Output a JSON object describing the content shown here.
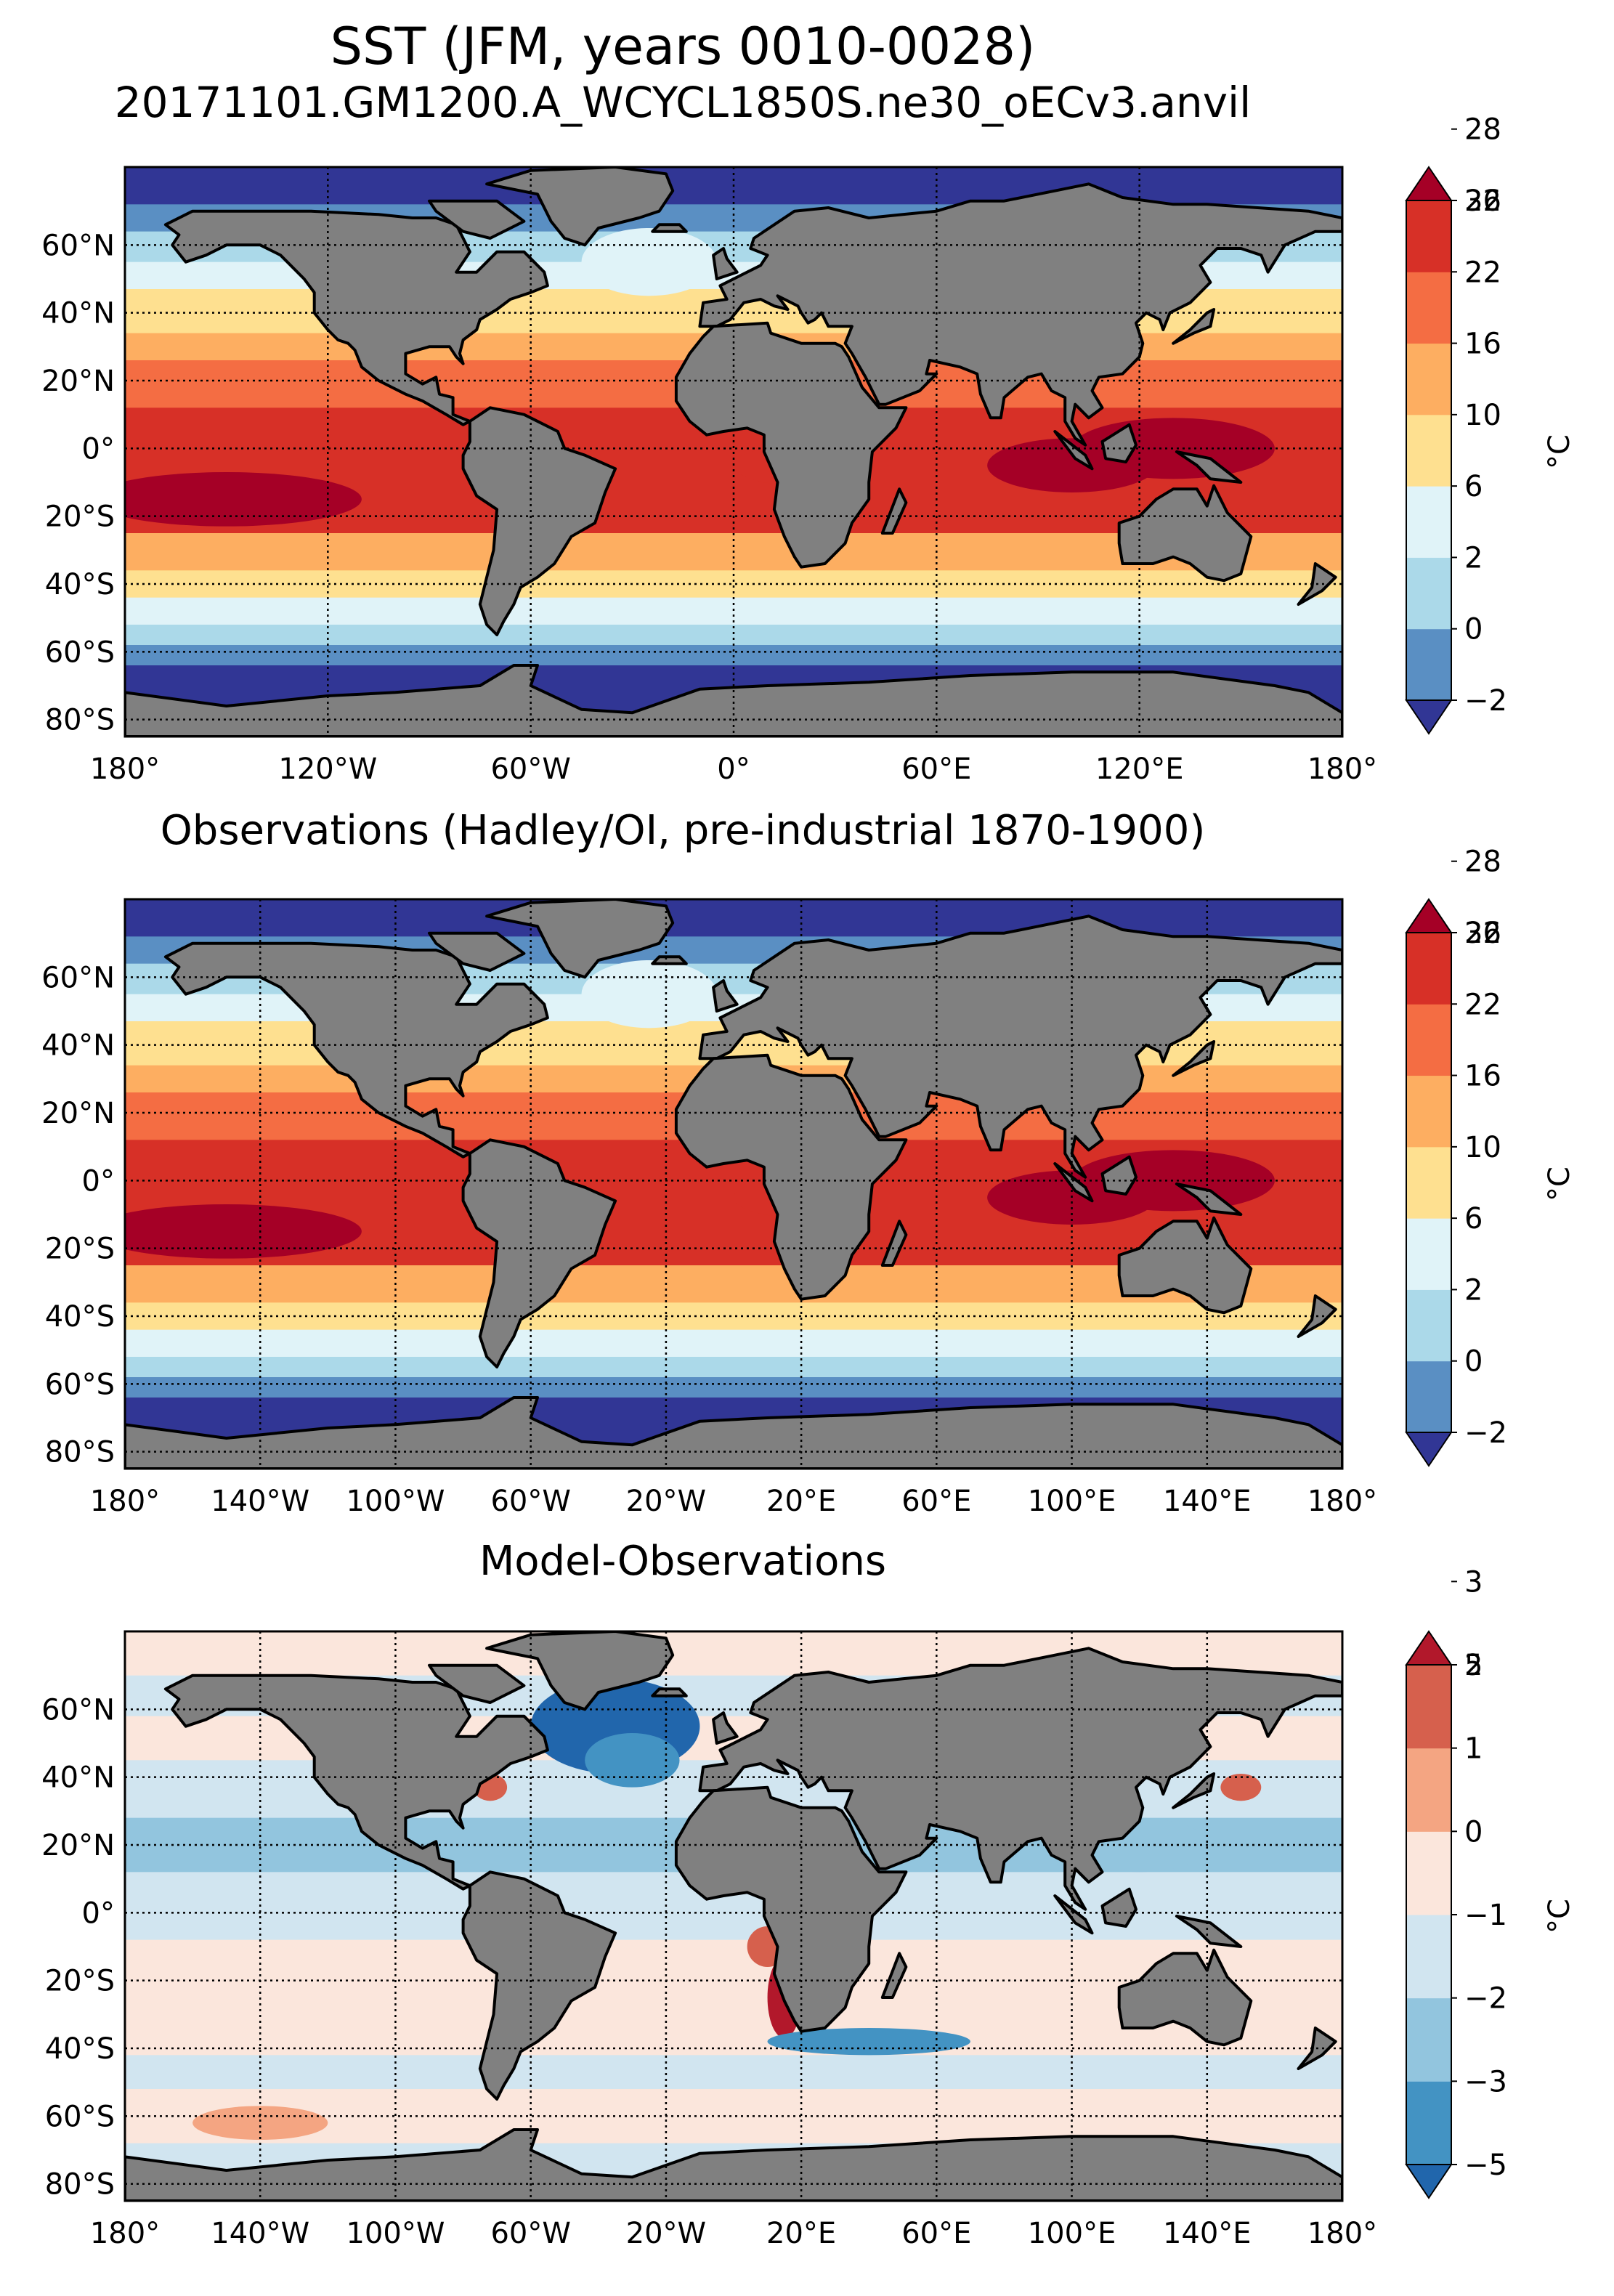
{
  "figure": {
    "title": "SST (JFM, years 0010-0028)",
    "subtitle": "20171101.GM1200.A_WCYCL1850S.ne30_oECv3.anvil"
  },
  "colors": {
    "land": "#808080",
    "grid": "#000000"
  },
  "chart_data": [
    {
      "type": "heatmap",
      "title": "",
      "variable": "SST",
      "lat_ticks": [
        "60°N",
        "40°N",
        "20°N",
        "0°",
        "20°S",
        "40°S",
        "60°S",
        "80°S"
      ],
      "lon_ticks": [
        "180°",
        "120°W",
        "60°W",
        "0°",
        "60°E",
        "120°E",
        "180°"
      ],
      "colorbar": {
        "label": "°C",
        "levels": [
          -2,
          0,
          2,
          6,
          10,
          16,
          22,
          26,
          28,
          32
        ],
        "tick_labels": [
          "−2",
          "0",
          "2",
          "6",
          "10",
          "16",
          "22",
          "26",
          "28",
          "32"
        ],
        "colors": [
          "#313695",
          "#5a8fc3",
          "#abd9e9",
          "#e0f3f8",
          "#fee090",
          "#fdae61",
          "#f46d43",
          "#d73027",
          "#a50026"
        ],
        "extend": "both"
      }
    },
    {
      "type": "heatmap",
      "title": "Observations (Hadley/OI, pre-industrial 1870-1900)",
      "variable": "SST",
      "lat_ticks": [
        "60°N",
        "40°N",
        "20°N",
        "0°",
        "20°S",
        "40°S",
        "60°S",
        "80°S"
      ],
      "lon_ticks": [
        "180°",
        "140°W",
        "100°W",
        "60°W",
        "20°W",
        "20°E",
        "60°E",
        "100°E",
        "140°E",
        "180°"
      ],
      "colorbar": {
        "label": "°C",
        "levels": [
          -2,
          0,
          2,
          6,
          10,
          16,
          22,
          26,
          28,
          32
        ],
        "tick_labels": [
          "−2",
          "0",
          "2",
          "6",
          "10",
          "16",
          "22",
          "26",
          "28",
          "32"
        ],
        "colors": [
          "#313695",
          "#5a8fc3",
          "#abd9e9",
          "#e0f3f8",
          "#fee090",
          "#fdae61",
          "#f46d43",
          "#d73027",
          "#a50026"
        ],
        "extend": "both"
      }
    },
    {
      "type": "heatmap",
      "title": "Model-Observations",
      "variable": "SST bias",
      "lat_ticks": [
        "60°N",
        "40°N",
        "20°N",
        "0°",
        "20°S",
        "40°S",
        "60°S",
        "80°S"
      ],
      "lon_ticks": [
        "180°",
        "140°W",
        "100°W",
        "60°W",
        "20°W",
        "20°E",
        "60°E",
        "100°E",
        "140°E",
        "180°"
      ],
      "colorbar": {
        "label": "°C",
        "levels": [
          -5,
          -3,
          -2,
          -1,
          0,
          1,
          2,
          3,
          5
        ],
        "tick_labels": [
          "−5",
          "−3",
          "−2",
          "−1",
          "0",
          "1",
          "2",
          "3",
          "5"
        ],
        "colors": [
          "#2166ac",
          "#4393c3",
          "#92c5de",
          "#d1e5f0",
          "#fbe6dc",
          "#f4a582",
          "#d6604d",
          "#b2182b"
        ],
        "extend": "both"
      }
    }
  ]
}
